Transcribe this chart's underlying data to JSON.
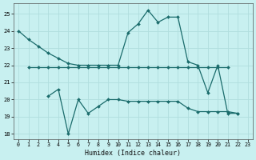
{
  "xlabel": "Humidex (Indice chaleur)",
  "series": [
    {
      "x": [
        0,
        1,
        2,
        3,
        4,
        5,
        6,
        7,
        8,
        9,
        10,
        11,
        12,
        13,
        14,
        15,
        16,
        17,
        18,
        19,
        20,
        21,
        22
      ],
      "y": [
        24,
        23.5,
        23.1,
        22.7,
        22.4,
        22.1,
        22.0,
        22.0,
        22.0,
        22.0,
        22.0,
        23.9,
        24.4,
        25.2,
        24.5,
        24.8,
        24.8,
        22.2,
        22.0,
        20.4,
        22.0,
        19.2,
        19.2
      ]
    },
    {
      "x": [
        1,
        2,
        3,
        4,
        5,
        6,
        7,
        8,
        9,
        10,
        11,
        12,
        13,
        14,
        15,
        16,
        17,
        18,
        19,
        20,
        21
      ],
      "y": [
        21.9,
        21.9,
        21.9,
        21.9,
        21.9,
        21.9,
        21.9,
        21.9,
        21.9,
        21.9,
        21.9,
        21.9,
        21.9,
        21.9,
        21.9,
        21.9,
        21.9,
        21.9,
        21.9,
        21.9,
        21.9
      ]
    },
    {
      "x": [
        3,
        4,
        5,
        6,
        7,
        8,
        9,
        10,
        11,
        12,
        13,
        14,
        15,
        16,
        17,
        18,
        19,
        20,
        21,
        22
      ],
      "y": [
        20.2,
        20.6,
        18.0,
        20.0,
        19.2,
        19.6,
        20.0,
        20.0,
        19.9,
        19.9,
        19.9,
        19.9,
        19.9,
        19.9,
        19.5,
        19.3,
        19.3,
        19.3,
        19.3,
        19.2
      ]
    }
  ],
  "line_color": "#1a6b6b",
  "bg_color": "#c8f0f0",
  "grid_color": "#b0dede",
  "ylim": [
    17.7,
    25.6
  ],
  "xlim": [
    -0.5,
    23.5
  ],
  "yticks": [
    18,
    19,
    20,
    21,
    22,
    23,
    24,
    25
  ],
  "xticks": [
    0,
    1,
    2,
    3,
    4,
    5,
    6,
    7,
    8,
    9,
    10,
    11,
    12,
    13,
    14,
    15,
    16,
    17,
    18,
    19,
    20,
    21,
    22,
    23
  ]
}
